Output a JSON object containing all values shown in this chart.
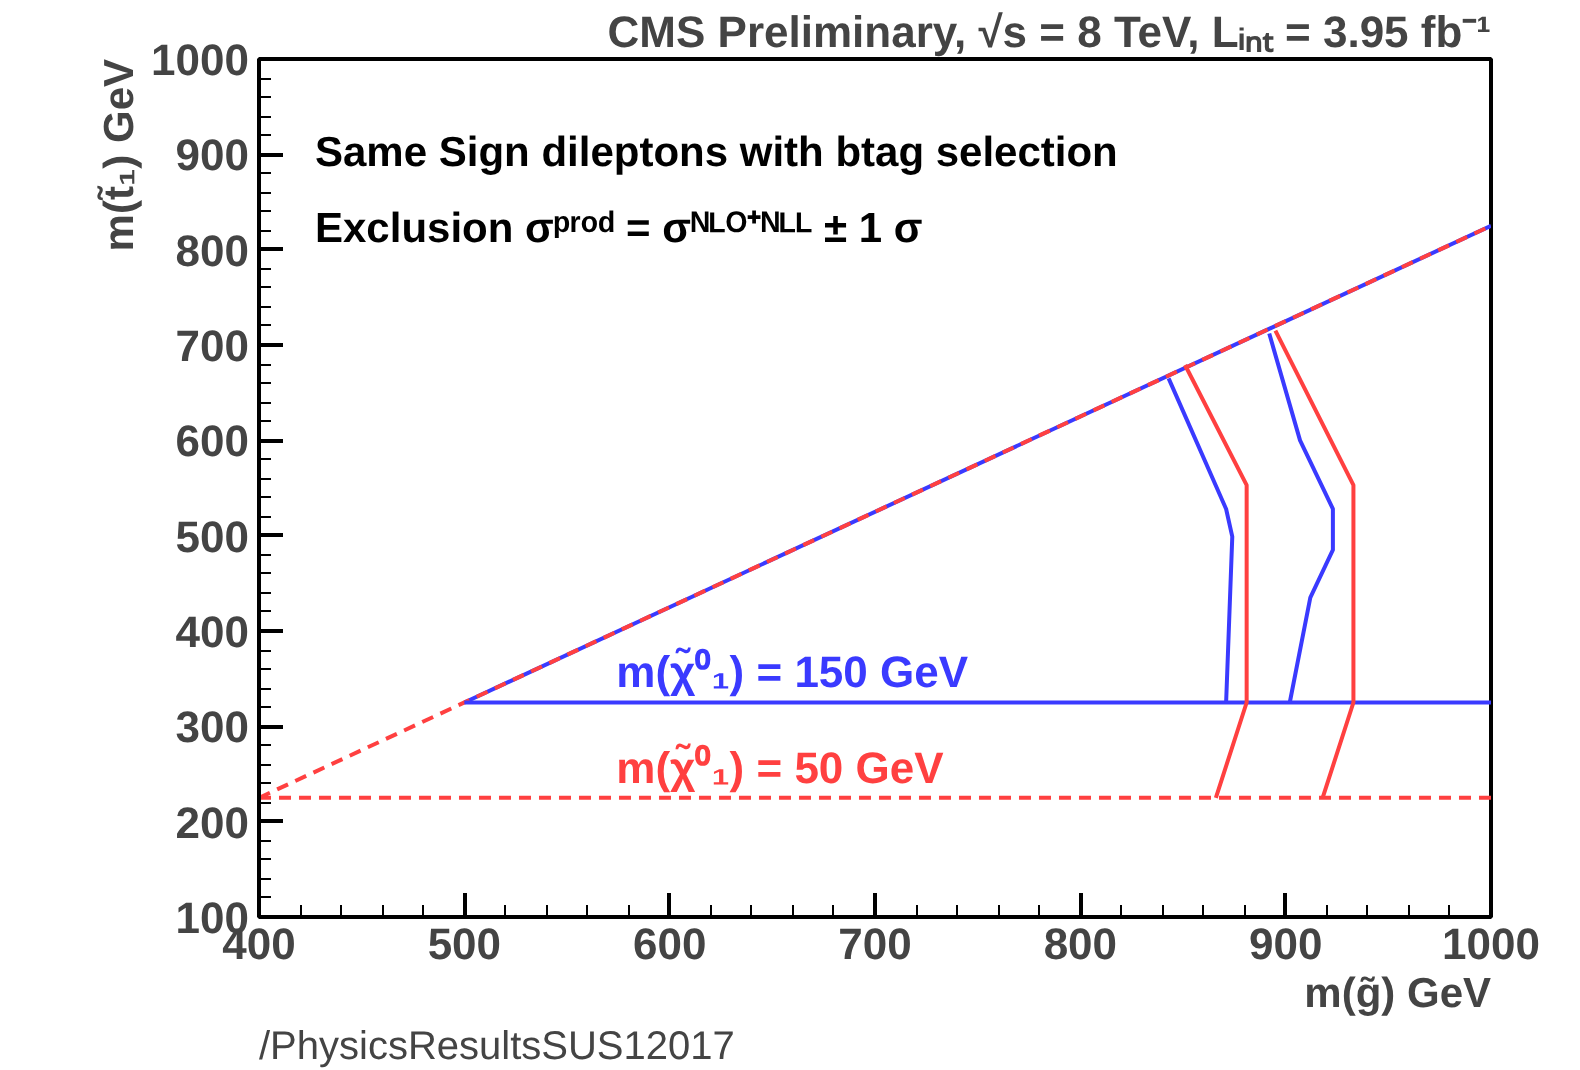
{
  "chart_data": {
    "type": "line",
    "title": "CMS Preliminary, √s = 8 TeV, Lᵢₙₜ = 3.95 fb⁻¹",
    "xlabel": "m(g̃) GeV",
    "ylabel": "m(t̃₁) GeV",
    "annotations": [
      "Same Sign dileptons with btag selection",
      "Exclusion σᵖʳᵒᵈ = σᴺᴸᴼ⁺ᴺᴸᴸ ± 1 σ",
      "/PhysicsResultsSUS12017"
    ],
    "xlim": [
      400,
      1000
    ],
    "ylim": [
      100,
      1000
    ],
    "xticks": [
      400,
      500,
      600,
      700,
      800,
      900,
      1000
    ],
    "yticks": [
      100,
      200,
      300,
      400,
      500,
      600,
      700,
      800,
      900,
      1000
    ],
    "grid": false,
    "marker": "none",
    "series": [
      {
        "color": "#3a3aff",
        "line_style": "solid",
        "x": [
          500,
          1000
        ],
        "values": [
          325,
          825
        ]
      },
      {
        "color": "#ff4040",
        "line_style": "dashed",
        "x": [
          400,
          1000
        ],
        "values": [
          225,
          825
        ]
      },
      {
        "name": "m(χ̃⁰₁) = 150 GeV",
        "color": "#3a3aff",
        "line_style": "solid",
        "x": [
          500,
          1000
        ],
        "values": [
          325,
          325
        ]
      },
      {
        "name": "m(χ̃⁰₁) = 50 GeV",
        "color": "#ff4040",
        "line_style": "dashed",
        "x": [
          400,
          1000
        ],
        "values": [
          225,
          225
        ]
      },
      {
        "color": "#3a3aff",
        "line_style": "solid",
        "x": [
          843,
          871,
          874,
          871
        ],
        "values": [
          665,
          528,
          499,
          325
        ]
      },
      {
        "color": "#3a3aff",
        "line_style": "solid",
        "x": [
          892,
          907,
          923,
          923,
          912,
          902
        ],
        "values": [
          712,
          600,
          528,
          485,
          435,
          325
        ]
      },
      {
        "color": "#ff4040",
        "line_style": "solid",
        "x": [
          851,
          881,
          881,
          866
        ],
        "values": [
          679,
          553,
          325,
          225
        ]
      },
      {
        "color": "#ff4040",
        "line_style": "solid",
        "x": [
          895,
          933,
          933,
          918
        ],
        "values": [
          715,
          553,
          325,
          225
        ]
      }
    ]
  }
}
